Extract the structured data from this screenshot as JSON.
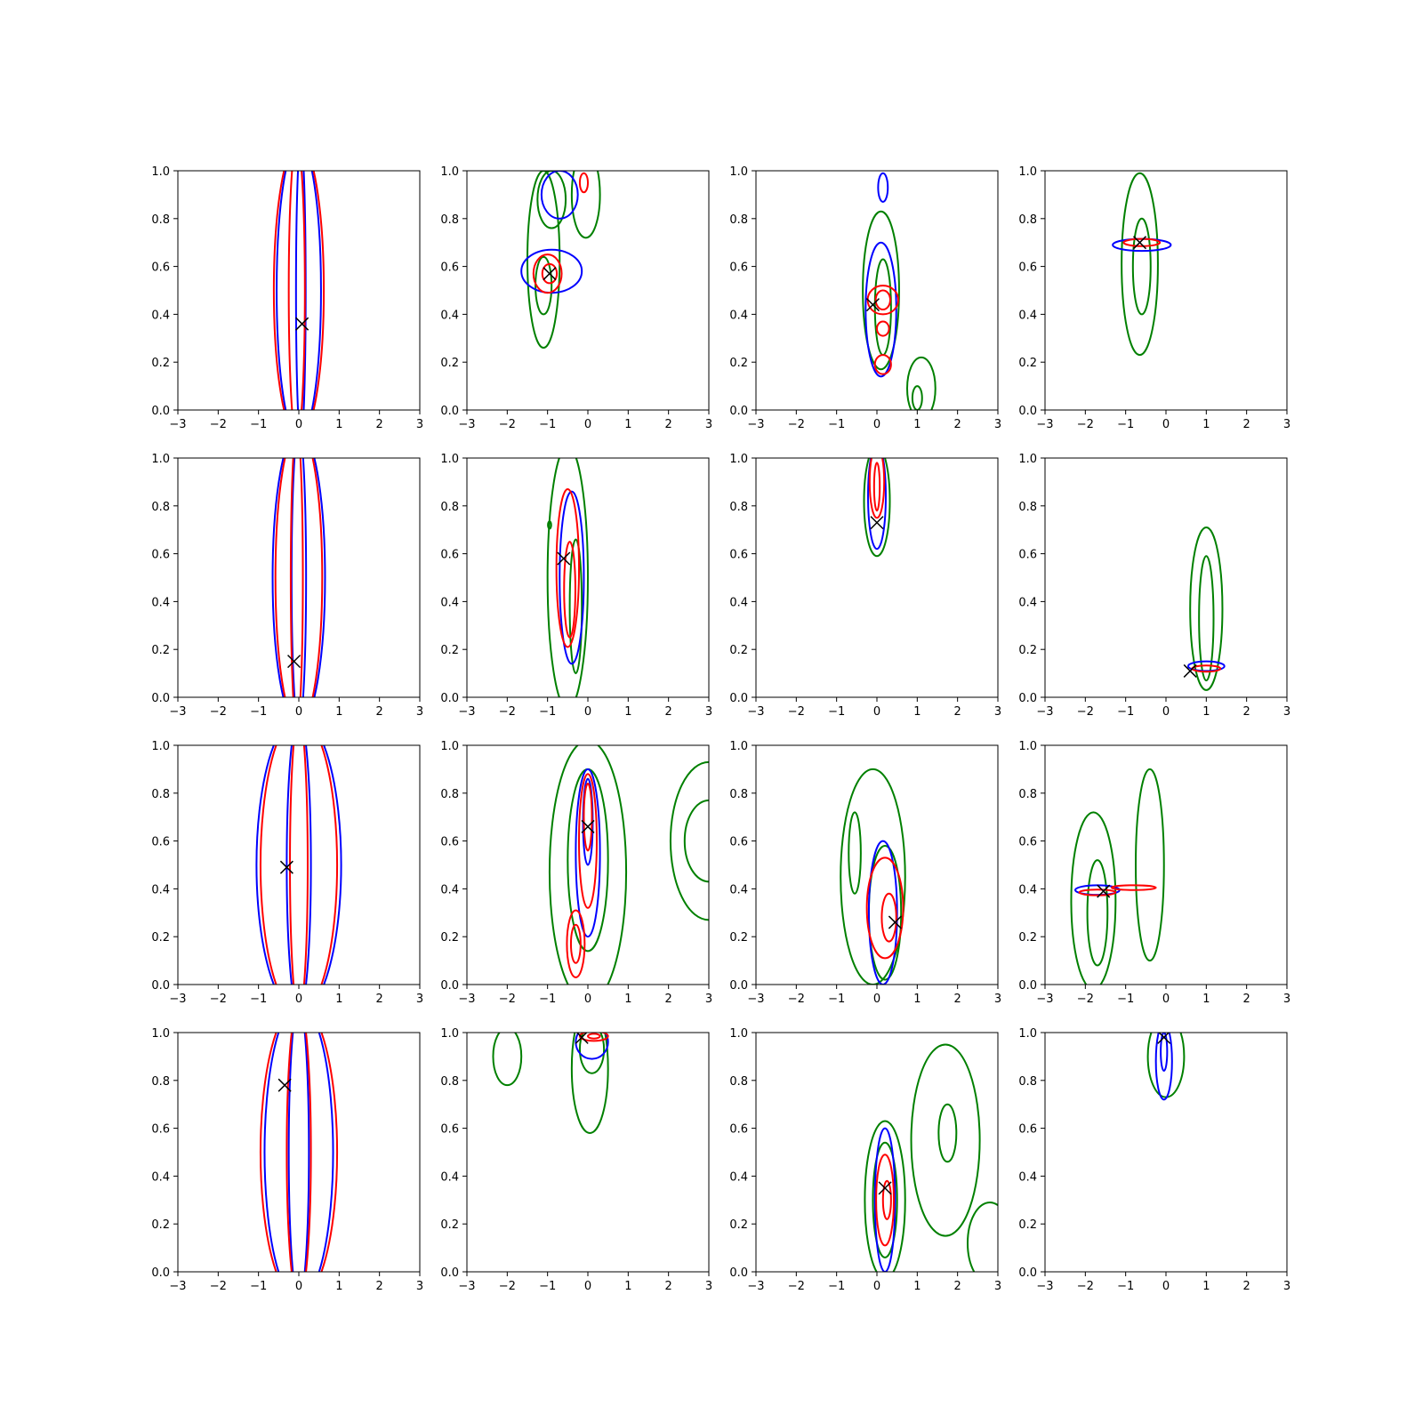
{
  "figure": {
    "grid": {
      "rows": 4,
      "cols": 4
    },
    "axes_style": {
      "grid": false,
      "legend": "none"
    },
    "colors": {
      "blue": "#0000ff",
      "red": "#ff0000",
      "green": "#008000",
      "marker": "#000000"
    },
    "x_ticks": [
      "−3",
      "−2",
      "−1",
      "0",
      "1",
      "2",
      "3"
    ],
    "y_ticks": [
      "0.0",
      "0.2",
      "0.4",
      "0.6",
      "0.8",
      "1.0"
    ]
  },
  "chart_data": [
    {
      "type": "contour",
      "row": 1,
      "col": 1,
      "xlim": [
        -3,
        3
      ],
      "ylim": [
        0,
        1
      ],
      "marker": {
        "x": 0.08,
        "y": 0.36
      },
      "contours": [
        {
          "color": "blue",
          "cx": 0.0,
          "cy": 0.5,
          "rx": 0.55,
          "ry": 0.62
        },
        {
          "color": "blue",
          "cx": 0.05,
          "cy": 0.5,
          "rx": 0.12,
          "ry": 0.62
        },
        {
          "color": "red",
          "cx": 0.0,
          "cy": 0.5,
          "rx": 0.62,
          "ry": 0.62
        },
        {
          "color": "red",
          "cx": -0.05,
          "cy": 0.5,
          "rx": 0.2,
          "ry": 0.62
        }
      ]
    },
    {
      "type": "contour",
      "row": 1,
      "col": 2,
      "xlim": [
        -3,
        3
      ],
      "ylim": [
        0,
        1
      ],
      "marker": {
        "x": -0.95,
        "y": 0.57
      },
      "contours": [
        {
          "color": "green",
          "cx": -1.1,
          "cy": 0.63,
          "rx": 0.4,
          "ry": 0.37
        },
        {
          "color": "green",
          "cx": -1.1,
          "cy": 0.52,
          "rx": 0.2,
          "ry": 0.12
        },
        {
          "color": "green",
          "cx": -0.05,
          "cy": 0.9,
          "rx": 0.35,
          "ry": 0.18
        },
        {
          "color": "green",
          "cx": -0.9,
          "cy": 0.88,
          "rx": 0.35,
          "ry": 0.12
        },
        {
          "color": "blue",
          "cx": -0.9,
          "cy": 0.58,
          "rx": 0.75,
          "ry": 0.09
        },
        {
          "color": "blue",
          "cx": -0.7,
          "cy": 0.9,
          "rx": 0.45,
          "ry": 0.1
        },
        {
          "color": "red",
          "cx": -1.0,
          "cy": 0.57,
          "rx": 0.35,
          "ry": 0.08
        },
        {
          "color": "red",
          "cx": -0.95,
          "cy": 0.57,
          "rx": 0.18,
          "ry": 0.04
        },
        {
          "color": "red",
          "cx": -0.1,
          "cy": 0.95,
          "rx": 0.1,
          "ry": 0.04
        }
      ]
    },
    {
      "type": "contour",
      "row": 1,
      "col": 3,
      "xlim": [
        -3,
        3
      ],
      "ylim": [
        0,
        1
      ],
      "marker": {
        "x": -0.1,
        "y": 0.44
      },
      "contours": [
        {
          "color": "green",
          "cx": 0.1,
          "cy": 0.5,
          "rx": 0.45,
          "ry": 0.33
        },
        {
          "color": "green",
          "cx": 0.15,
          "cy": 0.43,
          "rx": 0.2,
          "ry": 0.2
        },
        {
          "color": "green",
          "cx": 1.1,
          "cy": 0.09,
          "rx": 0.35,
          "ry": 0.13
        },
        {
          "color": "green",
          "cx": 1.0,
          "cy": 0.05,
          "rx": 0.12,
          "ry": 0.05
        },
        {
          "color": "blue",
          "cx": 0.1,
          "cy": 0.42,
          "rx": 0.38,
          "ry": 0.28
        },
        {
          "color": "blue",
          "cx": 0.15,
          "cy": 0.93,
          "rx": 0.12,
          "ry": 0.06
        },
        {
          "color": "red",
          "cx": 0.15,
          "cy": 0.46,
          "rx": 0.38,
          "ry": 0.06
        },
        {
          "color": "red",
          "cx": 0.15,
          "cy": 0.46,
          "rx": 0.18,
          "ry": 0.04
        },
        {
          "color": "red",
          "cx": 0.15,
          "cy": 0.34,
          "rx": 0.15,
          "ry": 0.03
        },
        {
          "color": "red",
          "cx": 0.15,
          "cy": 0.19,
          "rx": 0.2,
          "ry": 0.04
        }
      ]
    },
    {
      "type": "contour",
      "row": 1,
      "col": 4,
      "xlim": [
        -3,
        3
      ],
      "ylim": [
        0,
        1
      ],
      "marker": {
        "x": -0.65,
        "y": 0.7
      },
      "contours": [
        {
          "color": "green",
          "cx": -0.65,
          "cy": 0.61,
          "rx": 0.45,
          "ry": 0.38
        },
        {
          "color": "green",
          "cx": -0.6,
          "cy": 0.6,
          "rx": 0.22,
          "ry": 0.2
        },
        {
          "color": "blue",
          "cx": -0.6,
          "cy": 0.69,
          "rx": 0.72,
          "ry": 0.025
        },
        {
          "color": "red",
          "cx": -0.6,
          "cy": 0.7,
          "rx": 0.45,
          "ry": 0.015
        }
      ]
    },
    {
      "type": "contour",
      "row": 2,
      "col": 1,
      "xlim": [
        -3,
        3
      ],
      "ylim": [
        0,
        1
      ],
      "marker": {
        "x": -0.12,
        "y": 0.15
      },
      "contours": [
        {
          "color": "blue",
          "cx": 0.0,
          "cy": 0.5,
          "rx": 0.65,
          "ry": 0.62
        },
        {
          "color": "blue",
          "cx": 0.0,
          "cy": 0.5,
          "rx": 0.18,
          "ry": 0.62
        },
        {
          "color": "red",
          "cx": 0.0,
          "cy": 0.5,
          "rx": 0.58,
          "ry": 0.62
        },
        {
          "color": "red",
          "cx": -0.05,
          "cy": 0.5,
          "rx": 0.15,
          "ry": 0.62
        }
      ]
    },
    {
      "type": "contour",
      "row": 2,
      "col": 2,
      "xlim": [
        -3,
        3
      ],
      "ylim": [
        0,
        1
      ],
      "marker": {
        "x": -0.6,
        "y": 0.58
      },
      "contours": [
        {
          "color": "green",
          "cx": -0.5,
          "cy": 0.5,
          "rx": 0.5,
          "ry": 0.55
        },
        {
          "color": "green",
          "cx": -0.3,
          "cy": 0.38,
          "rx": 0.15,
          "ry": 0.28
        },
        {
          "color": "green",
          "cx": -0.95,
          "cy": 0.72,
          "rx": 0.04,
          "ry": 0.015
        },
        {
          "color": "blue",
          "cx": -0.4,
          "cy": 0.5,
          "rx": 0.3,
          "ry": 0.36
        },
        {
          "color": "red",
          "cx": -0.5,
          "cy": 0.54,
          "rx": 0.28,
          "ry": 0.33
        },
        {
          "color": "red",
          "cx": -0.45,
          "cy": 0.45,
          "rx": 0.14,
          "ry": 0.2
        }
      ]
    },
    {
      "type": "contour",
      "row": 2,
      "col": 3,
      "xlim": [
        -3,
        3
      ],
      "ylim": [
        0,
        1
      ],
      "marker": {
        "x": 0.0,
        "y": 0.73
      },
      "contours": [
        {
          "color": "green",
          "cx": 0.0,
          "cy": 0.82,
          "rx": 0.32,
          "ry": 0.23
        },
        {
          "color": "blue",
          "cx": 0.0,
          "cy": 0.84,
          "rx": 0.22,
          "ry": 0.22
        },
        {
          "color": "red",
          "cx": 0.0,
          "cy": 0.9,
          "rx": 0.18,
          "ry": 0.15
        },
        {
          "color": "red",
          "cx": 0.0,
          "cy": 0.88,
          "rx": 0.07,
          "ry": 0.1
        }
      ]
    },
    {
      "type": "contour",
      "row": 2,
      "col": 4,
      "xlim": [
        -3,
        3
      ],
      "ylim": [
        0,
        1
      ],
      "marker": {
        "x": 0.6,
        "y": 0.11
      },
      "contours": [
        {
          "color": "green",
          "cx": 1.0,
          "cy": 0.37,
          "rx": 0.4,
          "ry": 0.34
        },
        {
          "color": "green",
          "cx": 1.0,
          "cy": 0.33,
          "rx": 0.18,
          "ry": 0.26
        },
        {
          "color": "blue",
          "cx": 1.0,
          "cy": 0.13,
          "rx": 0.45,
          "ry": 0.02
        },
        {
          "color": "red",
          "cx": 1.0,
          "cy": 0.12,
          "rx": 0.35,
          "ry": 0.013
        }
      ]
    },
    {
      "type": "contour",
      "row": 3,
      "col": 1,
      "xlim": [
        -3,
        3
      ],
      "ylim": [
        0,
        1
      ],
      "marker": {
        "x": -0.3,
        "y": 0.49
      },
      "contours": [
        {
          "color": "blue",
          "cx": 0.0,
          "cy": 0.5,
          "rx": 1.05,
          "ry": 0.62
        },
        {
          "color": "blue",
          "cx": 0.0,
          "cy": 0.5,
          "rx": 0.3,
          "ry": 0.62
        },
        {
          "color": "red",
          "cx": 0.0,
          "cy": 0.5,
          "rx": 0.95,
          "ry": 0.62
        },
        {
          "color": "red",
          "cx": 0.0,
          "cy": 0.5,
          "rx": 0.22,
          "ry": 0.62
        }
      ]
    },
    {
      "type": "contour",
      "row": 3,
      "col": 2,
      "xlim": [
        -3,
        3
      ],
      "ylim": [
        0,
        1
      ],
      "marker": {
        "x": 0.0,
        "y": 0.66
      },
      "contours": [
        {
          "color": "green",
          "cx": 0.0,
          "cy": 0.47,
          "rx": 0.95,
          "ry": 0.55
        },
        {
          "color": "green",
          "cx": 0.0,
          "cy": 0.52,
          "rx": 0.5,
          "ry": 0.38
        },
        {
          "color": "green",
          "cx": 3.0,
          "cy": 0.6,
          "rx": 0.95,
          "ry": 0.33
        },
        {
          "color": "green",
          "cx": 3.0,
          "cy": 0.6,
          "rx": 0.6,
          "ry": 0.17
        },
        {
          "color": "blue",
          "cx": 0.0,
          "cy": 0.55,
          "rx": 0.3,
          "ry": 0.35
        },
        {
          "color": "blue",
          "cx": 0.0,
          "cy": 0.68,
          "rx": 0.12,
          "ry": 0.18
        },
        {
          "color": "red",
          "cx": 0.0,
          "cy": 0.6,
          "rx": 0.22,
          "ry": 0.28
        },
        {
          "color": "red",
          "cx": 0.0,
          "cy": 0.7,
          "rx": 0.1,
          "ry": 0.14
        },
        {
          "color": "red",
          "cx": -0.3,
          "cy": 0.17,
          "rx": 0.22,
          "ry": 0.14
        },
        {
          "color": "red",
          "cx": -0.3,
          "cy": 0.17,
          "rx": 0.12,
          "ry": 0.08
        }
      ]
    },
    {
      "type": "contour",
      "row": 3,
      "col": 3,
      "xlim": [
        -3,
        3
      ],
      "ylim": [
        0,
        1
      ],
      "marker": {
        "x": 0.45,
        "y": 0.26
      },
      "contours": [
        {
          "color": "green",
          "cx": -0.1,
          "cy": 0.45,
          "rx": 0.8,
          "ry": 0.45
        },
        {
          "color": "green",
          "cx": -0.55,
          "cy": 0.55,
          "rx": 0.15,
          "ry": 0.17
        },
        {
          "color": "green",
          "cx": 0.2,
          "cy": 0.3,
          "rx": 0.4,
          "ry": 0.28
        },
        {
          "color": "blue",
          "cx": 0.15,
          "cy": 0.3,
          "rx": 0.35,
          "ry": 0.3
        },
        {
          "color": "red",
          "cx": 0.2,
          "cy": 0.32,
          "rx": 0.45,
          "ry": 0.21
        },
        {
          "color": "red",
          "cx": 0.3,
          "cy": 0.28,
          "rx": 0.18,
          "ry": 0.1
        }
      ]
    },
    {
      "type": "contour",
      "row": 3,
      "col": 4,
      "xlim": [
        -3,
        3
      ],
      "ylim": [
        0,
        1
      ],
      "marker": {
        "x": -1.55,
        "y": 0.39
      },
      "contours": [
        {
          "color": "green",
          "cx": -1.8,
          "cy": 0.35,
          "rx": 0.55,
          "ry": 0.37
        },
        {
          "color": "green",
          "cx": -1.7,
          "cy": 0.3,
          "rx": 0.25,
          "ry": 0.22
        },
        {
          "color": "green",
          "cx": -0.4,
          "cy": 0.5,
          "rx": 0.35,
          "ry": 0.4
        },
        {
          "color": "blue",
          "cx": -1.7,
          "cy": 0.395,
          "rx": 0.55,
          "ry": 0.02
        },
        {
          "color": "red",
          "cx": -1.7,
          "cy": 0.385,
          "rx": 0.45,
          "ry": 0.012
        },
        {
          "color": "red",
          "cx": -0.8,
          "cy": 0.405,
          "rx": 0.55,
          "ry": 0.01
        }
      ]
    },
    {
      "type": "contour",
      "row": 4,
      "col": 1,
      "xlim": [
        -3,
        3
      ],
      "ylim": [
        0,
        1
      ],
      "marker": {
        "x": -0.35,
        "y": 0.78
      },
      "contours": [
        {
          "color": "blue",
          "cx": 0.0,
          "cy": 0.5,
          "rx": 0.85,
          "ry": 0.62
        },
        {
          "color": "blue",
          "cx": 0.0,
          "cy": 0.5,
          "rx": 0.25,
          "ry": 0.62
        },
        {
          "color": "red",
          "cx": 0.0,
          "cy": 0.5,
          "rx": 0.95,
          "ry": 0.62
        },
        {
          "color": "red",
          "cx": 0.0,
          "cy": 0.5,
          "rx": 0.3,
          "ry": 0.62
        }
      ]
    },
    {
      "type": "contour",
      "row": 4,
      "col": 2,
      "xlim": [
        -3,
        3
      ],
      "ylim": [
        0,
        1
      ],
      "marker": {
        "x": -0.15,
        "y": 0.98
      },
      "contours": [
        {
          "color": "green",
          "cx": -2.0,
          "cy": 0.9,
          "rx": 0.35,
          "ry": 0.12
        },
        {
          "color": "green",
          "cx": 0.05,
          "cy": 0.85,
          "rx": 0.45,
          "ry": 0.27
        },
        {
          "color": "green",
          "cx": 0.1,
          "cy": 0.93,
          "rx": 0.3,
          "ry": 0.1
        },
        {
          "color": "blue",
          "cx": 0.1,
          "cy": 0.96,
          "rx": 0.4,
          "ry": 0.07
        },
        {
          "color": "red",
          "cx": 0.15,
          "cy": 0.985,
          "rx": 0.35,
          "ry": 0.02
        },
        {
          "color": "red",
          "cx": 0.15,
          "cy": 0.985,
          "rx": 0.15,
          "ry": 0.01
        }
      ]
    },
    {
      "type": "contour",
      "row": 4,
      "col": 3,
      "xlim": [
        -3,
        3
      ],
      "ylim": [
        0,
        1
      ],
      "marker": {
        "x": 0.2,
        "y": 0.35
      },
      "contours": [
        {
          "color": "green",
          "cx": 0.2,
          "cy": 0.3,
          "rx": 0.5,
          "ry": 0.33
        },
        {
          "color": "green",
          "cx": 0.2,
          "cy": 0.3,
          "rx": 0.3,
          "ry": 0.24
        },
        {
          "color": "green",
          "cx": 1.7,
          "cy": 0.55,
          "rx": 0.85,
          "ry": 0.4
        },
        {
          "color": "green",
          "cx": 1.75,
          "cy": 0.58,
          "rx": 0.22,
          "ry": 0.12
        },
        {
          "color": "green",
          "cx": 2.8,
          "cy": 0.12,
          "rx": 0.55,
          "ry": 0.17
        },
        {
          "color": "blue",
          "cx": 0.2,
          "cy": 0.3,
          "rx": 0.25,
          "ry": 0.3
        },
        {
          "color": "red",
          "cx": 0.2,
          "cy": 0.3,
          "rx": 0.22,
          "ry": 0.19
        },
        {
          "color": "red",
          "cx": 0.25,
          "cy": 0.3,
          "rx": 0.1,
          "ry": 0.08
        }
      ]
    },
    {
      "type": "contour",
      "row": 4,
      "col": 4,
      "xlim": [
        -3,
        3
      ],
      "ylim": [
        0,
        1
      ],
      "marker": {
        "x": -0.05,
        "y": 0.98
      },
      "contours": [
        {
          "color": "green",
          "cx": 0.0,
          "cy": 0.9,
          "rx": 0.45,
          "ry": 0.17
        },
        {
          "color": "blue",
          "cx": -0.05,
          "cy": 0.88,
          "rx": 0.2,
          "ry": 0.16
        },
        {
          "color": "blue",
          "cx": -0.05,
          "cy": 0.92,
          "rx": 0.08,
          "ry": 0.08
        }
      ]
    }
  ]
}
